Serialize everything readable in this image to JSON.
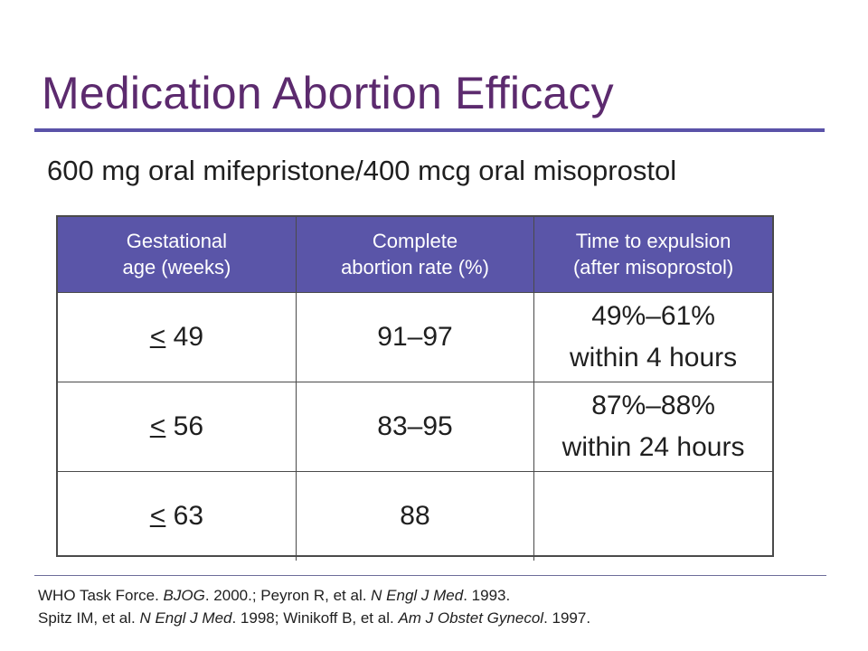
{
  "title": "Medication Abortion Efficacy",
  "subtitle": "600 mg oral mifepristone/400 mcg oral misoprostol",
  "table": {
    "headers": [
      {
        "line1": "Gestational",
        "line2": "age (weeks)"
      },
      {
        "line1": "Complete",
        "line2": "abortion rate (%)"
      },
      {
        "line1": "Time to expulsion",
        "line2": "(after misoprostol)"
      }
    ],
    "rows": [
      {
        "ga_symbol": "<",
        "ga_value": " 49",
        "rate": "91–97",
        "time_line1": "49%–61%",
        "time_line2": "within 4 hours"
      },
      {
        "ga_symbol": "<",
        "ga_value": " 56",
        "rate": "83–95",
        "time_line1": "87%–88%",
        "time_line2": "within 24 hours"
      },
      {
        "ga_symbol": "<",
        "ga_value": " 63",
        "rate": "88",
        "time_line1": "",
        "time_line2": ""
      }
    ]
  },
  "references": {
    "line1": [
      {
        "text": "WHO Task Force. ",
        "italic": false
      },
      {
        "text": "BJOG",
        "italic": true
      },
      {
        "text": ". 2000.; Peyron R, et al. ",
        "italic": false
      },
      {
        "text": "N Engl J Med",
        "italic": true
      },
      {
        "text": ". 1993.",
        "italic": false
      }
    ],
    "line2": [
      {
        "text": "Spitz IM, et al. ",
        "italic": false
      },
      {
        "text": "N Engl J Med",
        "italic": true
      },
      {
        "text": ". 1998; Winikoff B, et al. ",
        "italic": false
      },
      {
        "text": "Am J Obstet Gynecol",
        "italic": true
      },
      {
        "text": ". 1997.",
        "italic": false
      }
    ]
  },
  "colors": {
    "title": "#5c2a6e",
    "accent": "#5a55a8"
  }
}
